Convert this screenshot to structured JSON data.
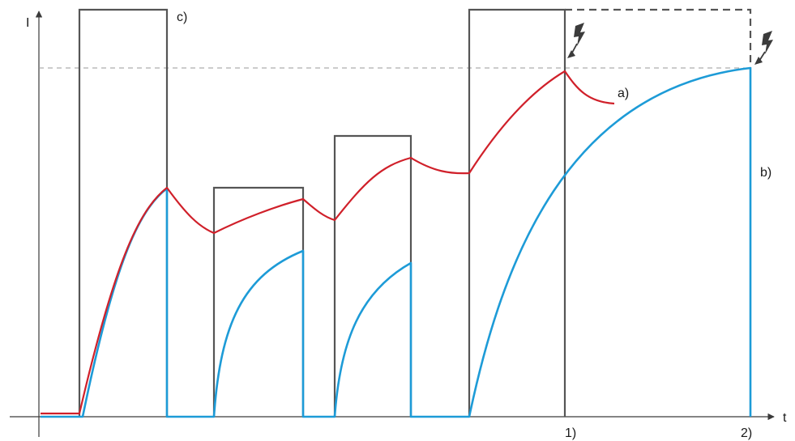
{
  "axes": {
    "y_label": "I",
    "x_label": "t"
  },
  "labels": {
    "curve_a": "a)",
    "curve_b": "b)",
    "curve_c": "c)",
    "mark_1": "1)",
    "mark_2": "2)"
  },
  "colors": {
    "thermal_curve": "#d0202a",
    "reference_curve": "#1d9bd7",
    "current_pulses": "#555555",
    "threshold_line": "#9a9a9a"
  },
  "icons": {
    "trip_marker_1": "lightning-bolt-icon",
    "trip_marker_2": "lightning-bolt-icon"
  }
}
